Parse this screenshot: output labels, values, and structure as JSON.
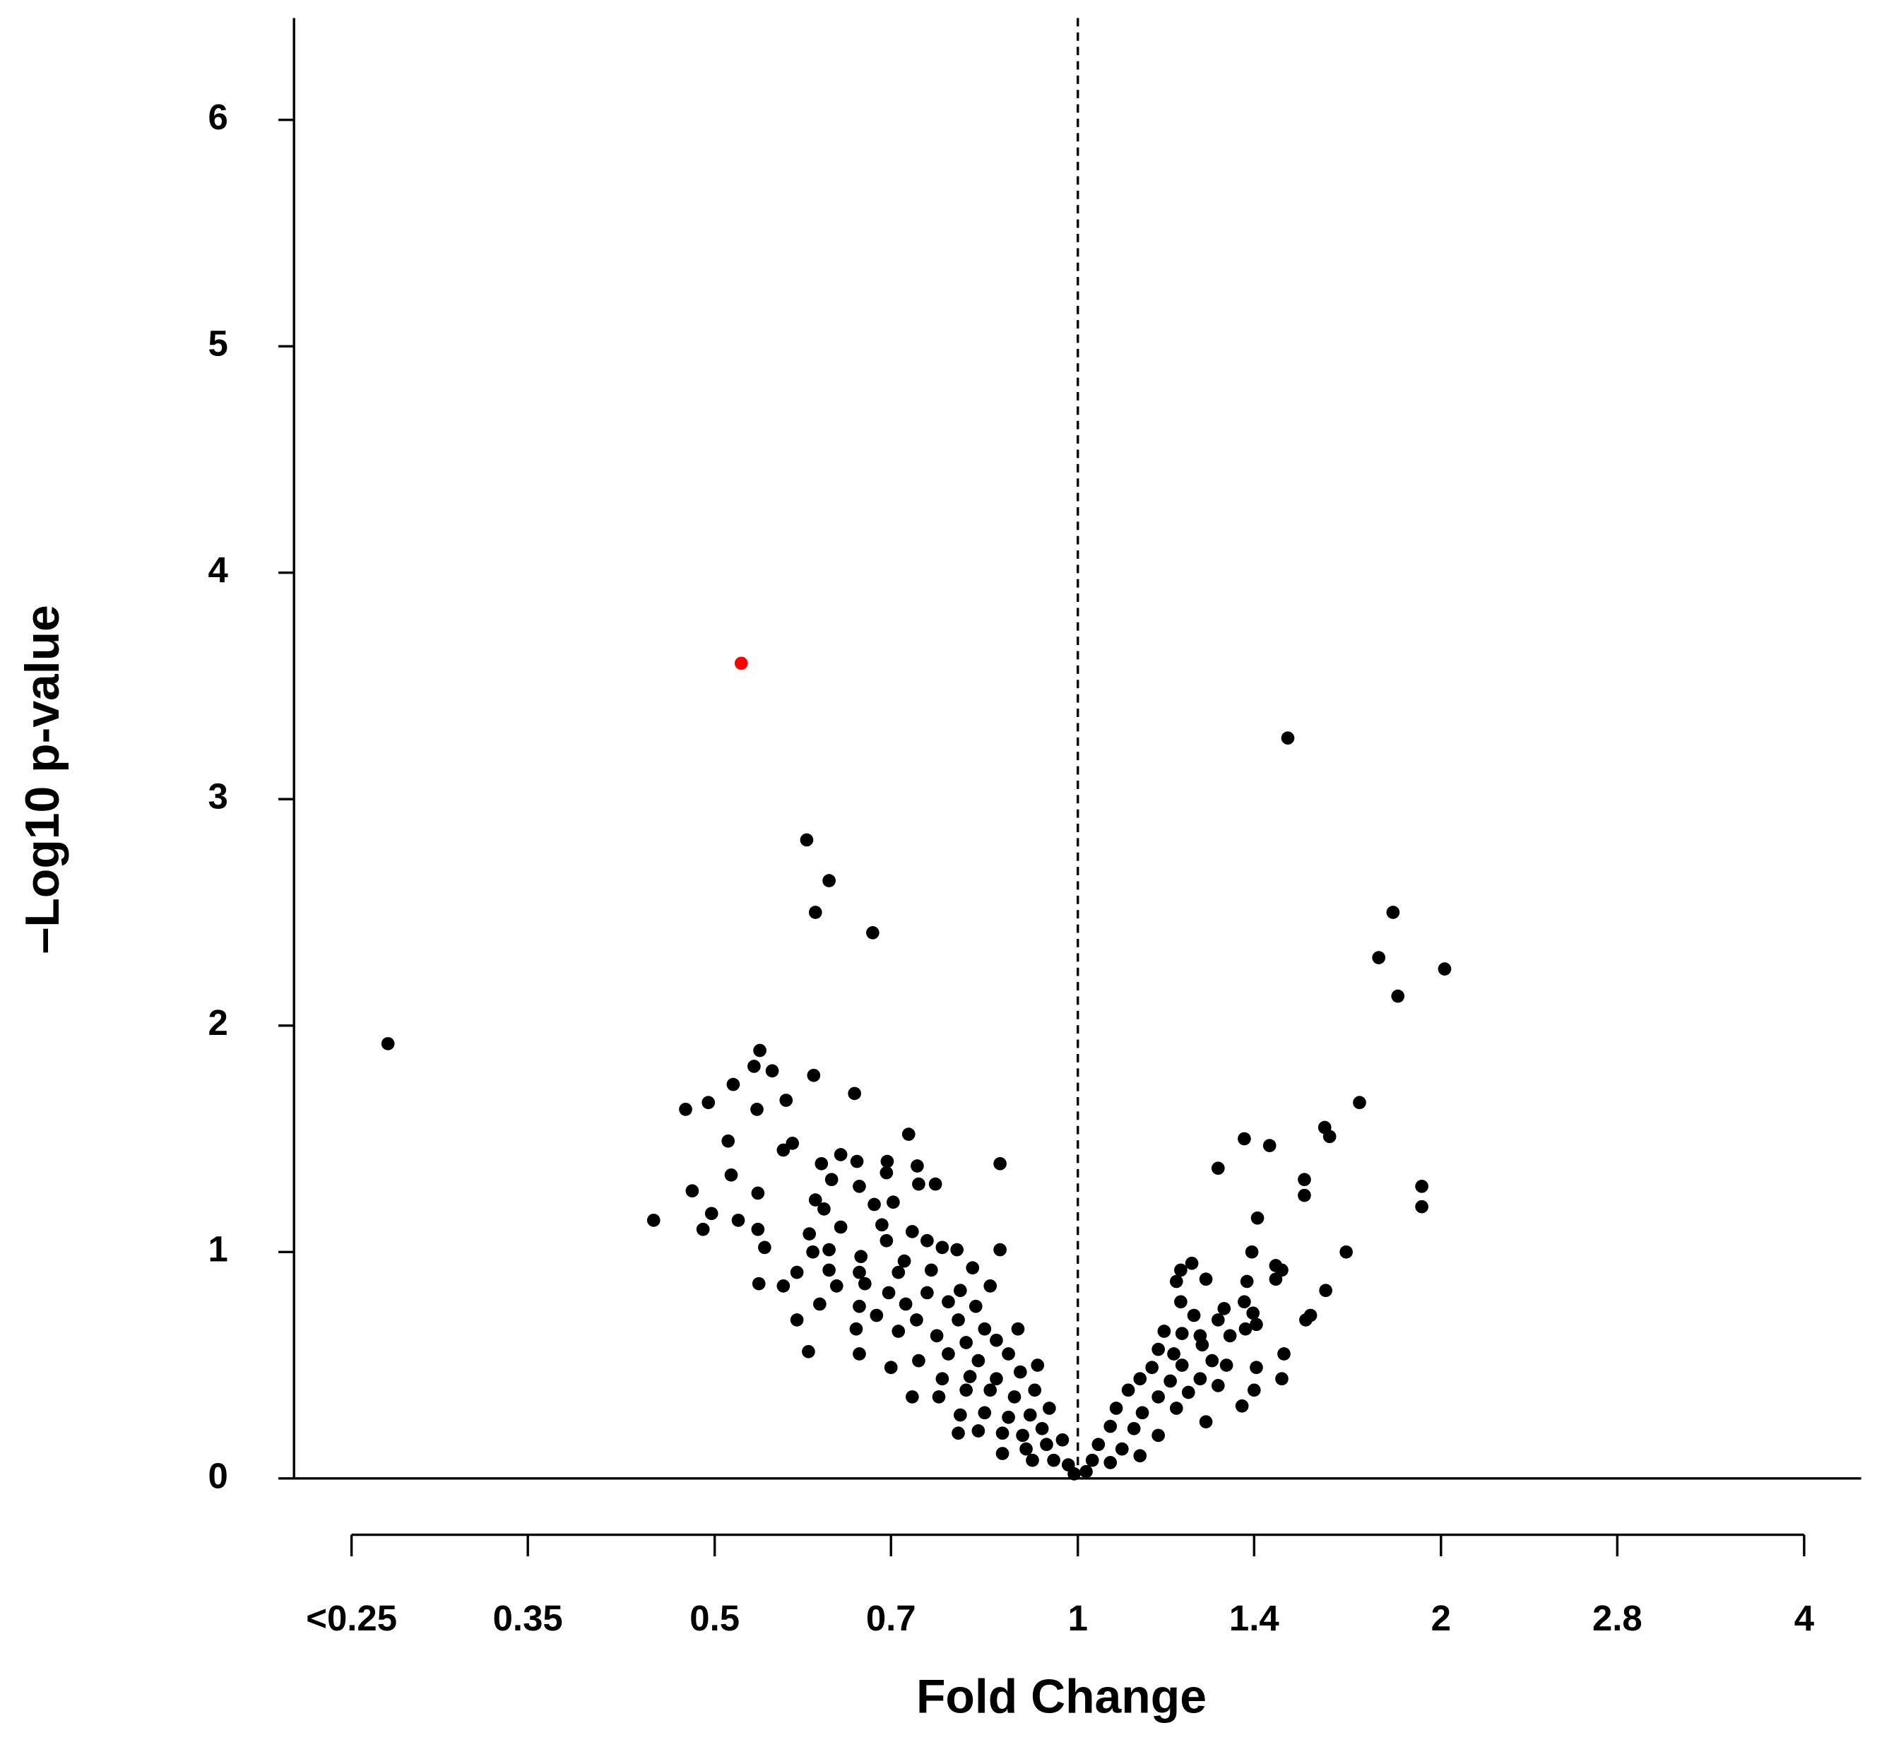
{
  "chart_data": {
    "type": "scatter",
    "xlabel": "Fold Change",
    "ylabel": "–Log10 p-value",
    "xscale": "log",
    "xlim": [
      0.224,
      4.46
    ],
    "ylim": [
      0,
      6.45
    ],
    "xticks": [
      {
        "value": 0.25,
        "label": "<0.25"
      },
      0.35,
      0.5,
      0.7,
      1,
      1.4,
      2,
      2.8,
      4
    ],
    "yticks": [
      0,
      1,
      2,
      3,
      4,
      5,
      6
    ],
    "vline": 1,
    "series": [
      {
        "color": "#000000",
        "x": [
          0.268,
          0.596,
          0.622,
          0.606,
          0.676,
          0.545,
          0.539,
          0.558,
          0.604,
          0.518,
          0.473,
          0.494,
          0.573,
          0.653,
          0.542,
          0.513,
          0.724,
          0.58,
          0.57,
          0.636,
          0.695,
          0.613,
          0.656,
          0.736,
          0.862,
          0.516,
          0.625,
          0.694,
          0.762,
          0.738,
          0.479,
          0.543,
          0.659,
          0.606,
          0.703,
          0.616,
          0.678,
          0.445,
          0.497,
          0.523,
          0.636,
          0.688,
          0.489,
          0.543,
          0.599,
          0.729,
          0.694,
          0.75,
          0.772,
          0.55,
          0.603,
          0.622,
          0.862,
          0.661,
          0.718,
          0.794,
          0.622,
          0.659,
          0.585,
          0.71,
          0.756,
          0.818,
          0.544,
          0.57,
          0.631,
          0.666,
          0.697,
          0.75,
          0.799,
          0.846,
          0.611,
          0.659,
          0.72,
          0.781,
          0.823,
          0.585,
          0.681,
          0.735,
          0.796,
          0.837,
          0.892,
          0.655,
          0.71,
          0.764,
          0.808,
          0.856,
          0.598,
          0.659,
          0.7,
          0.738,
          0.781,
          0.827,
          0.876,
          0.926,
          0.772,
          0.814,
          0.856,
          0.896,
          0.729,
          0.767,
          0.808,
          0.846,
          0.886,
          0.921,
          0.799,
          0.837,
          0.876,
          0.913,
          0.947,
          0.796,
          0.827,
          0.866,
          0.9,
          0.934,
          0.866,
          0.906,
          0.942,
          0.971,
          0.917,
          0.955,
          0.982,
          0.993,
          1.493,
          1.825,
          1.776,
          2.014,
          1.842,
          1.712,
          1.602,
          1.617,
          1.374,
          1.442,
          1.307,
          1.541,
          1.928,
          1.541,
          1.928,
          1.409,
          1.394,
          1.669,
          1.243,
          1.459,
          1.476,
          1.217,
          1.277,
          1.381,
          1.459,
          1.207,
          1.605,
          1.217,
          1.374,
          1.322,
          1.397,
          1.545,
          1.559,
          1.248,
          1.307,
          1.406,
          1.179,
          1.377,
          1.22,
          1.263,
          1.337,
          1.166,
          1.201,
          1.268,
          1.482,
          1.152,
          1.22,
          1.292,
          1.328,
          1.406,
          1.126,
          1.193,
          1.263,
          1.476,
          1.4,
          1.101,
          1.166,
          1.235,
          1.307,
          1.368,
          1.076,
          1.131,
          1.207,
          1.277,
          1.064,
          1.113,
          1.166,
          1.04,
          1.088,
          1.126,
          1.028,
          1.064,
          1.016
        ],
        "values": [
          1.92,
          2.82,
          2.64,
          2.5,
          2.41,
          1.89,
          1.82,
          1.8,
          1.78,
          1.74,
          1.63,
          1.66,
          1.67,
          1.7,
          1.63,
          1.49,
          1.52,
          1.48,
          1.45,
          1.43,
          1.4,
          1.39,
          1.4,
          1.38,
          1.39,
          1.34,
          1.32,
          1.35,
          1.3,
          1.3,
          1.27,
          1.26,
          1.29,
          1.23,
          1.22,
          1.19,
          1.21,
          1.14,
          1.17,
          1.14,
          1.11,
          1.12,
          1.1,
          1.1,
          1.08,
          1.09,
          1.05,
          1.05,
          1.02,
          1.02,
          1.0,
          1.01,
          1.01,
          0.98,
          0.96,
          1.01,
          0.92,
          0.91,
          0.91,
          0.91,
          0.92,
          0.93,
          0.86,
          0.85,
          0.85,
          0.86,
          0.82,
          0.82,
          0.83,
          0.85,
          0.77,
          0.76,
          0.77,
          0.78,
          0.76,
          0.7,
          0.72,
          0.7,
          0.7,
          0.66,
          0.66,
          0.66,
          0.65,
          0.63,
          0.6,
          0.61,
          0.56,
          0.55,
          0.49,
          0.52,
          0.55,
          0.52,
          0.55,
          0.5,
          0.44,
          0.45,
          0.44,
          0.47,
          0.36,
          0.36,
          0.39,
          0.39,
          0.36,
          0.39,
          0.28,
          0.29,
          0.27,
          0.28,
          0.31,
          0.2,
          0.21,
          0.2,
          0.19,
          0.22,
          0.11,
          0.13,
          0.15,
          0.17,
          0.08,
          0.08,
          0.06,
          0.02,
          3.27,
          2.5,
          2.3,
          2.25,
          2.13,
          1.66,
          1.55,
          1.51,
          1.5,
          1.47,
          1.37,
          1.32,
          1.29,
          1.25,
          1.2,
          1.15,
          1.0,
          1.0,
          0.95,
          0.94,
          0.92,
          0.92,
          0.88,
          0.87,
          0.88,
          0.87,
          0.83,
          0.78,
          0.78,
          0.75,
          0.73,
          0.7,
          0.72,
          0.72,
          0.7,
          0.68,
          0.65,
          0.66,
          0.64,
          0.63,
          0.63,
          0.57,
          0.55,
          0.59,
          0.55,
          0.49,
          0.5,
          0.52,
          0.5,
          0.49,
          0.44,
          0.43,
          0.44,
          0.44,
          0.39,
          0.39,
          0.36,
          0.38,
          0.41,
          0.32,
          0.31,
          0.29,
          0.31,
          0.25,
          0.23,
          0.22,
          0.19,
          0.15,
          0.13,
          0.1,
          0.08,
          0.07,
          0.03
        ]
      },
      {
        "color": "#ff0000",
        "x": [
          0.526
        ],
        "values": [
          3.6
        ]
      }
    ]
  }
}
